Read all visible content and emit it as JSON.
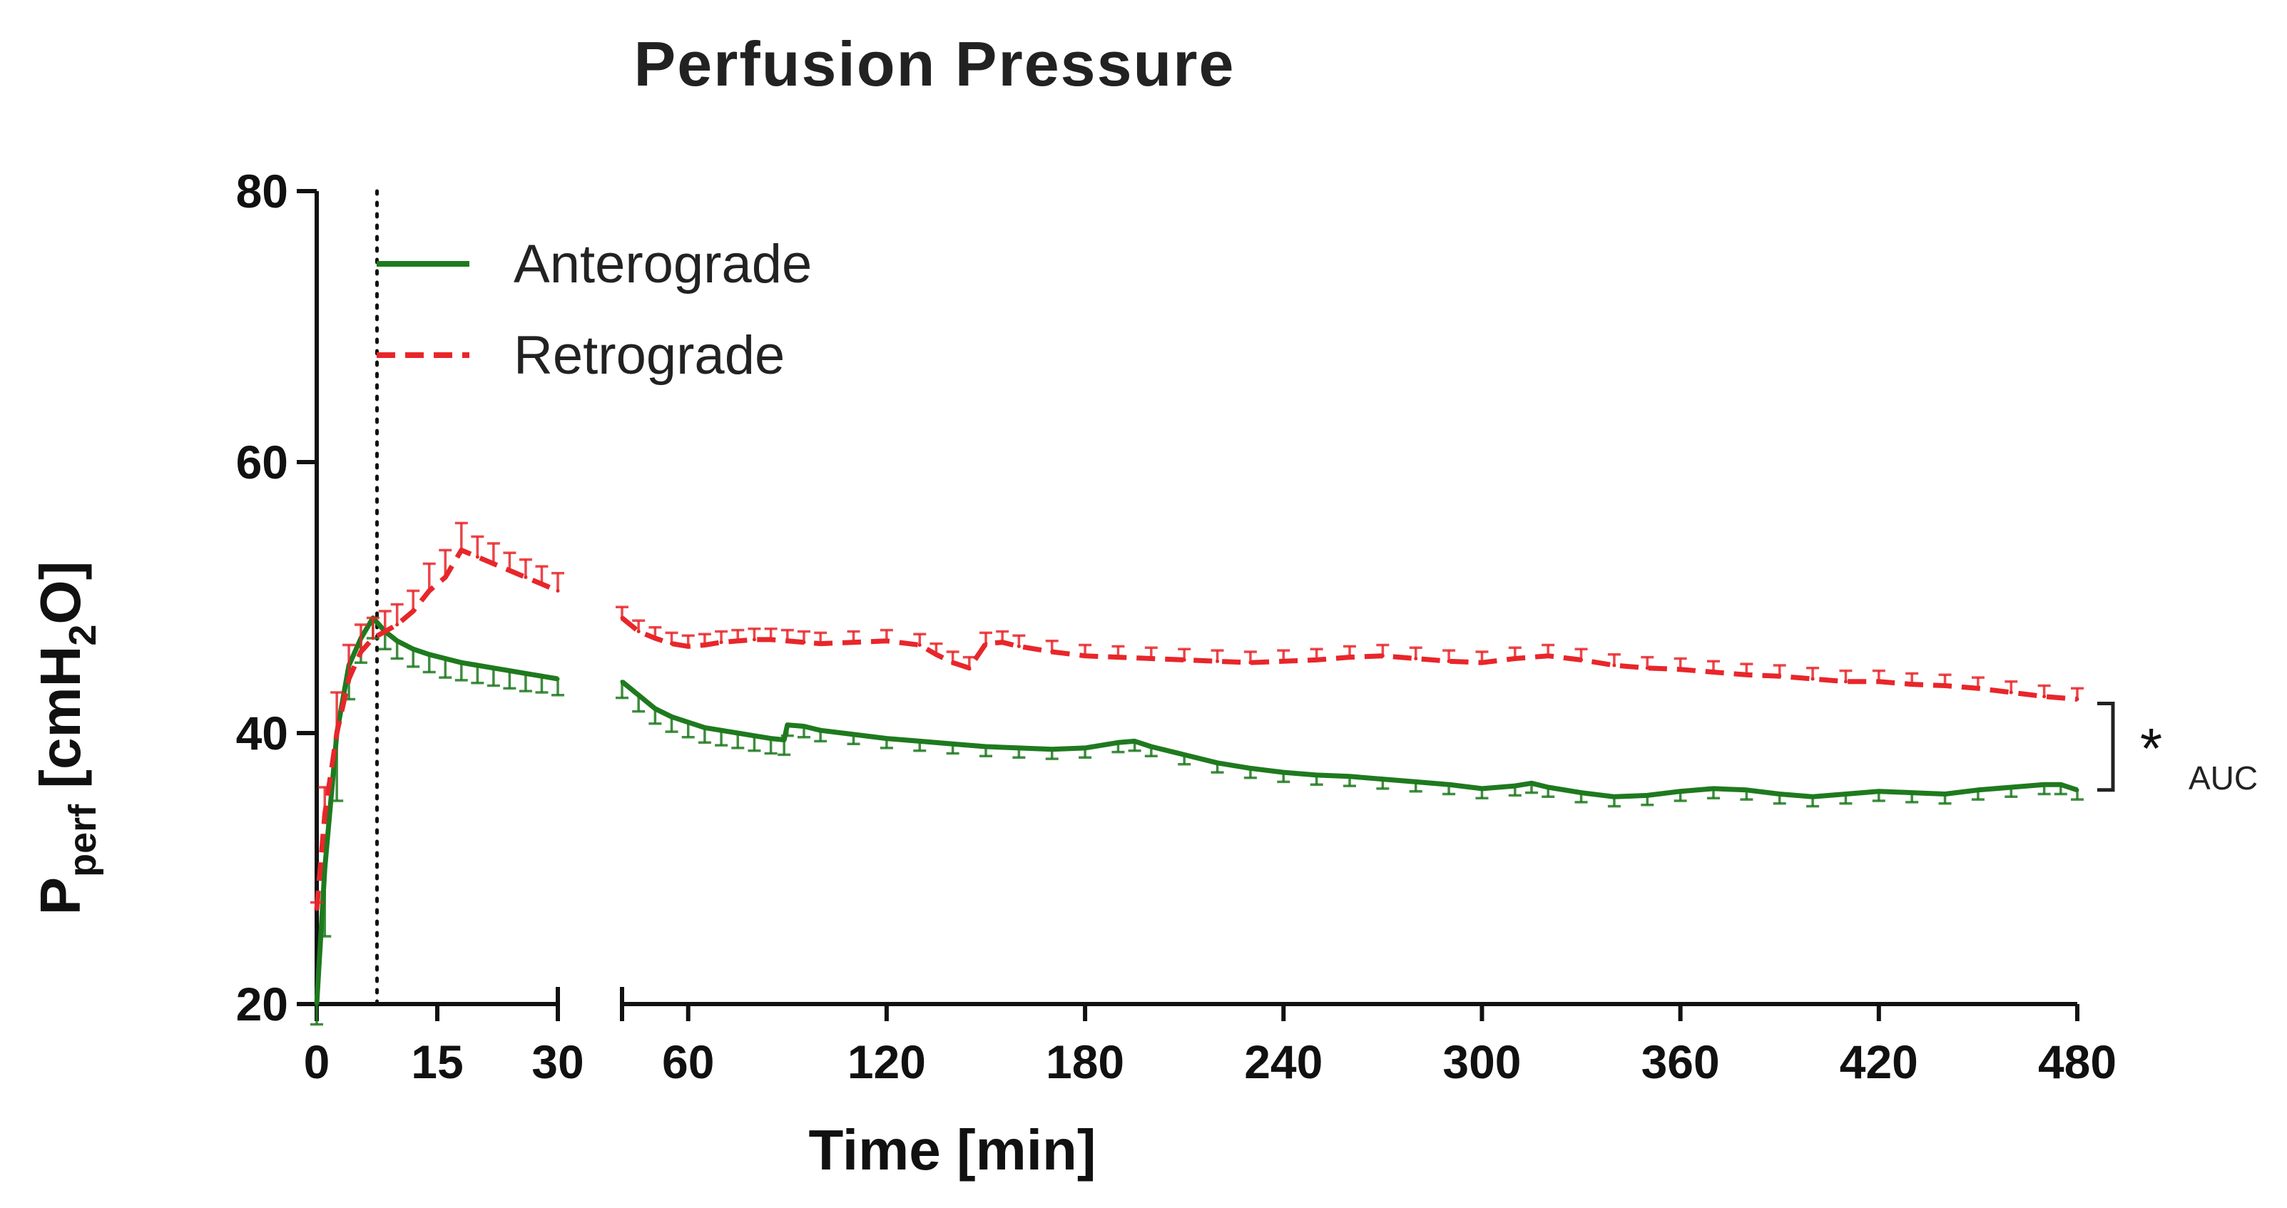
{
  "chart_data": {
    "type": "line",
    "title": "Perfusion  Pressure",
    "xlabel": "Time [min]",
    "ylabel": {
      "main": "P",
      "sub1": "perf",
      "mid": " [cmH",
      "sub2": "2",
      "end": "O]"
    },
    "ylim": [
      20,
      80
    ],
    "yticks": [
      "20",
      "40",
      "60",
      "80"
    ],
    "x_segments": [
      {
        "range": [
          0,
          30
        ],
        "ticks": [
          "0",
          "15",
          "30"
        ]
      },
      {
        "range": [
          40,
          480
        ],
        "ticks": [
          "60",
          "120",
          "180",
          "240",
          "300",
          "360",
          "420",
          "480"
        ]
      }
    ],
    "vline_x": 7.5,
    "significance": {
      "symbol": "*",
      "label": "AUC"
    },
    "series": [
      {
        "name": "Anterograde",
        "color": "#1e7a1e",
        "style": "solid",
        "error_dir": -1,
        "x": [
          0,
          1,
          2.5,
          4,
          5.5,
          7,
          8.5,
          10,
          12,
          14,
          16,
          18,
          20,
          22,
          24,
          26,
          28,
          30,
          40,
          45,
          50,
          55,
          60,
          65,
          70,
          75,
          80,
          85,
          89,
          90,
          95,
          100,
          110,
          120,
          130,
          140,
          150,
          160,
          170,
          180,
          190,
          195,
          200,
          210,
          220,
          230,
          240,
          250,
          260,
          270,
          280,
          290,
          300,
          310,
          315,
          320,
          330,
          340,
          350,
          360,
          370,
          380,
          390,
          400,
          410,
          420,
          430,
          440,
          450,
          460,
          470,
          475,
          480
        ],
        "values": [
          20,
          30,
          40,
          45,
          47,
          48.5,
          47.5,
          46.8,
          46.2,
          45.8,
          45.5,
          45.2,
          45,
          44.8,
          44.6,
          44.4,
          44.2,
          44,
          43.8,
          42.8,
          41.8,
          41.2,
          40.8,
          40.4,
          40.2,
          40.0,
          39.8,
          39.6,
          39.5,
          40.6,
          40.5,
          40.2,
          39.9,
          39.6,
          39.4,
          39.2,
          39.0,
          38.9,
          38.8,
          38.9,
          39.3,
          39.4,
          39.0,
          38.4,
          37.8,
          37.4,
          37.1,
          36.9,
          36.8,
          36.6,
          36.4,
          36.2,
          35.9,
          36.1,
          36.3,
          36.0,
          35.6,
          35.3,
          35.4,
          35.7,
          35.9,
          35.8,
          35.5,
          35.3,
          35.5,
          35.7,
          35.6,
          35.5,
          35.8,
          36.0,
          36.2,
          36.2,
          35.8
        ],
        "errors": [
          1.5,
          5,
          5,
          2.5,
          1.8,
          1.5,
          1.3,
          1.3,
          1.3,
          1.3,
          1.4,
          1.3,
          1.3,
          1.3,
          1.3,
          1.3,
          1.2,
          1.2,
          1.2,
          1.2,
          1.1,
          1.1,
          1.1,
          1.1,
          1.1,
          1.1,
          1.1,
          1.1,
          1.1,
          0.8,
          0.8,
          0.8,
          0.7,
          0.7,
          0.7,
          0.7,
          0.7,
          0.7,
          0.7,
          0.7,
          0.7,
          0.7,
          0.7,
          0.7,
          0.7,
          0.7,
          0.7,
          0.7,
          0.7,
          0.7,
          0.7,
          0.7,
          0.7,
          0.7,
          0.7,
          0.7,
          0.7,
          0.7,
          0.7,
          0.7,
          0.7,
          0.7,
          0.7,
          0.7,
          0.7,
          0.7,
          0.7,
          0.7,
          0.7,
          0.7,
          0.7,
          0.7,
          0.7
        ]
      },
      {
        "name": "Retrograde",
        "color": "#e8262a",
        "style": "dashed",
        "error_dir": 1,
        "x": [
          0,
          1,
          2.5,
          4,
          5.5,
          7,
          8.5,
          10,
          12,
          14,
          16,
          18,
          20,
          22,
          24,
          26,
          28,
          30,
          40,
          45,
          50,
          55,
          60,
          65,
          70,
          75,
          80,
          85,
          90,
          95,
          100,
          110,
          120,
          130,
          135,
          140,
          145,
          150,
          155,
          160,
          170,
          180,
          190,
          200,
          210,
          220,
          230,
          240,
          250,
          260,
          270,
          280,
          290,
          300,
          310,
          320,
          330,
          340,
          350,
          360,
          370,
          380,
          390,
          400,
          410,
          420,
          430,
          440,
          450,
          460,
          470,
          480
        ],
        "values": [
          27,
          34,
          40,
          44,
          46,
          47,
          47.5,
          48,
          49,
          50.5,
          51.5,
          53.5,
          53,
          52.5,
          52,
          51.5,
          51,
          50.5,
          48.5,
          47.5,
          47,
          46.6,
          46.4,
          46.5,
          46.7,
          46.8,
          46.9,
          46.9,
          46.8,
          46.7,
          46.6,
          46.7,
          46.8,
          46.5,
          45.8,
          45.2,
          44.8,
          46.6,
          46.7,
          46.4,
          46.0,
          45.7,
          45.6,
          45.5,
          45.4,
          45.3,
          45.2,
          45.3,
          45.4,
          45.6,
          45.7,
          45.5,
          45.3,
          45.2,
          45.5,
          45.7,
          45.4,
          45.0,
          44.8,
          44.7,
          44.5,
          44.3,
          44.2,
          44.0,
          43.8,
          43.8,
          43.6,
          43.5,
          43.3,
          43.0,
          42.7,
          42.5
        ],
        "errors": [
          0.5,
          2,
          3,
          2.5,
          2,
          1.5,
          1.5,
          1.5,
          1.5,
          2,
          2,
          2,
          1.5,
          1.5,
          1.3,
          1.3,
          1.3,
          1.3,
          0.8,
          0.8,
          0.8,
          0.8,
          0.8,
          0.8,
          0.8,
          0.8,
          0.8,
          0.8,
          0.8,
          0.8,
          0.8,
          0.8,
          0.8,
          0.8,
          0.8,
          0.8,
          0.8,
          0.8,
          0.8,
          0.8,
          0.8,
          0.8,
          0.8,
          0.8,
          0.8,
          0.8,
          0.8,
          0.8,
          0.8,
          0.8,
          0.8,
          0.8,
          0.8,
          0.8,
          0.8,
          0.8,
          0.8,
          0.8,
          0.8,
          0.8,
          0.8,
          0.8,
          0.8,
          0.8,
          0.8,
          0.8,
          0.8,
          0.8,
          0.8,
          0.8,
          0.8,
          0.8
        ]
      }
    ]
  }
}
